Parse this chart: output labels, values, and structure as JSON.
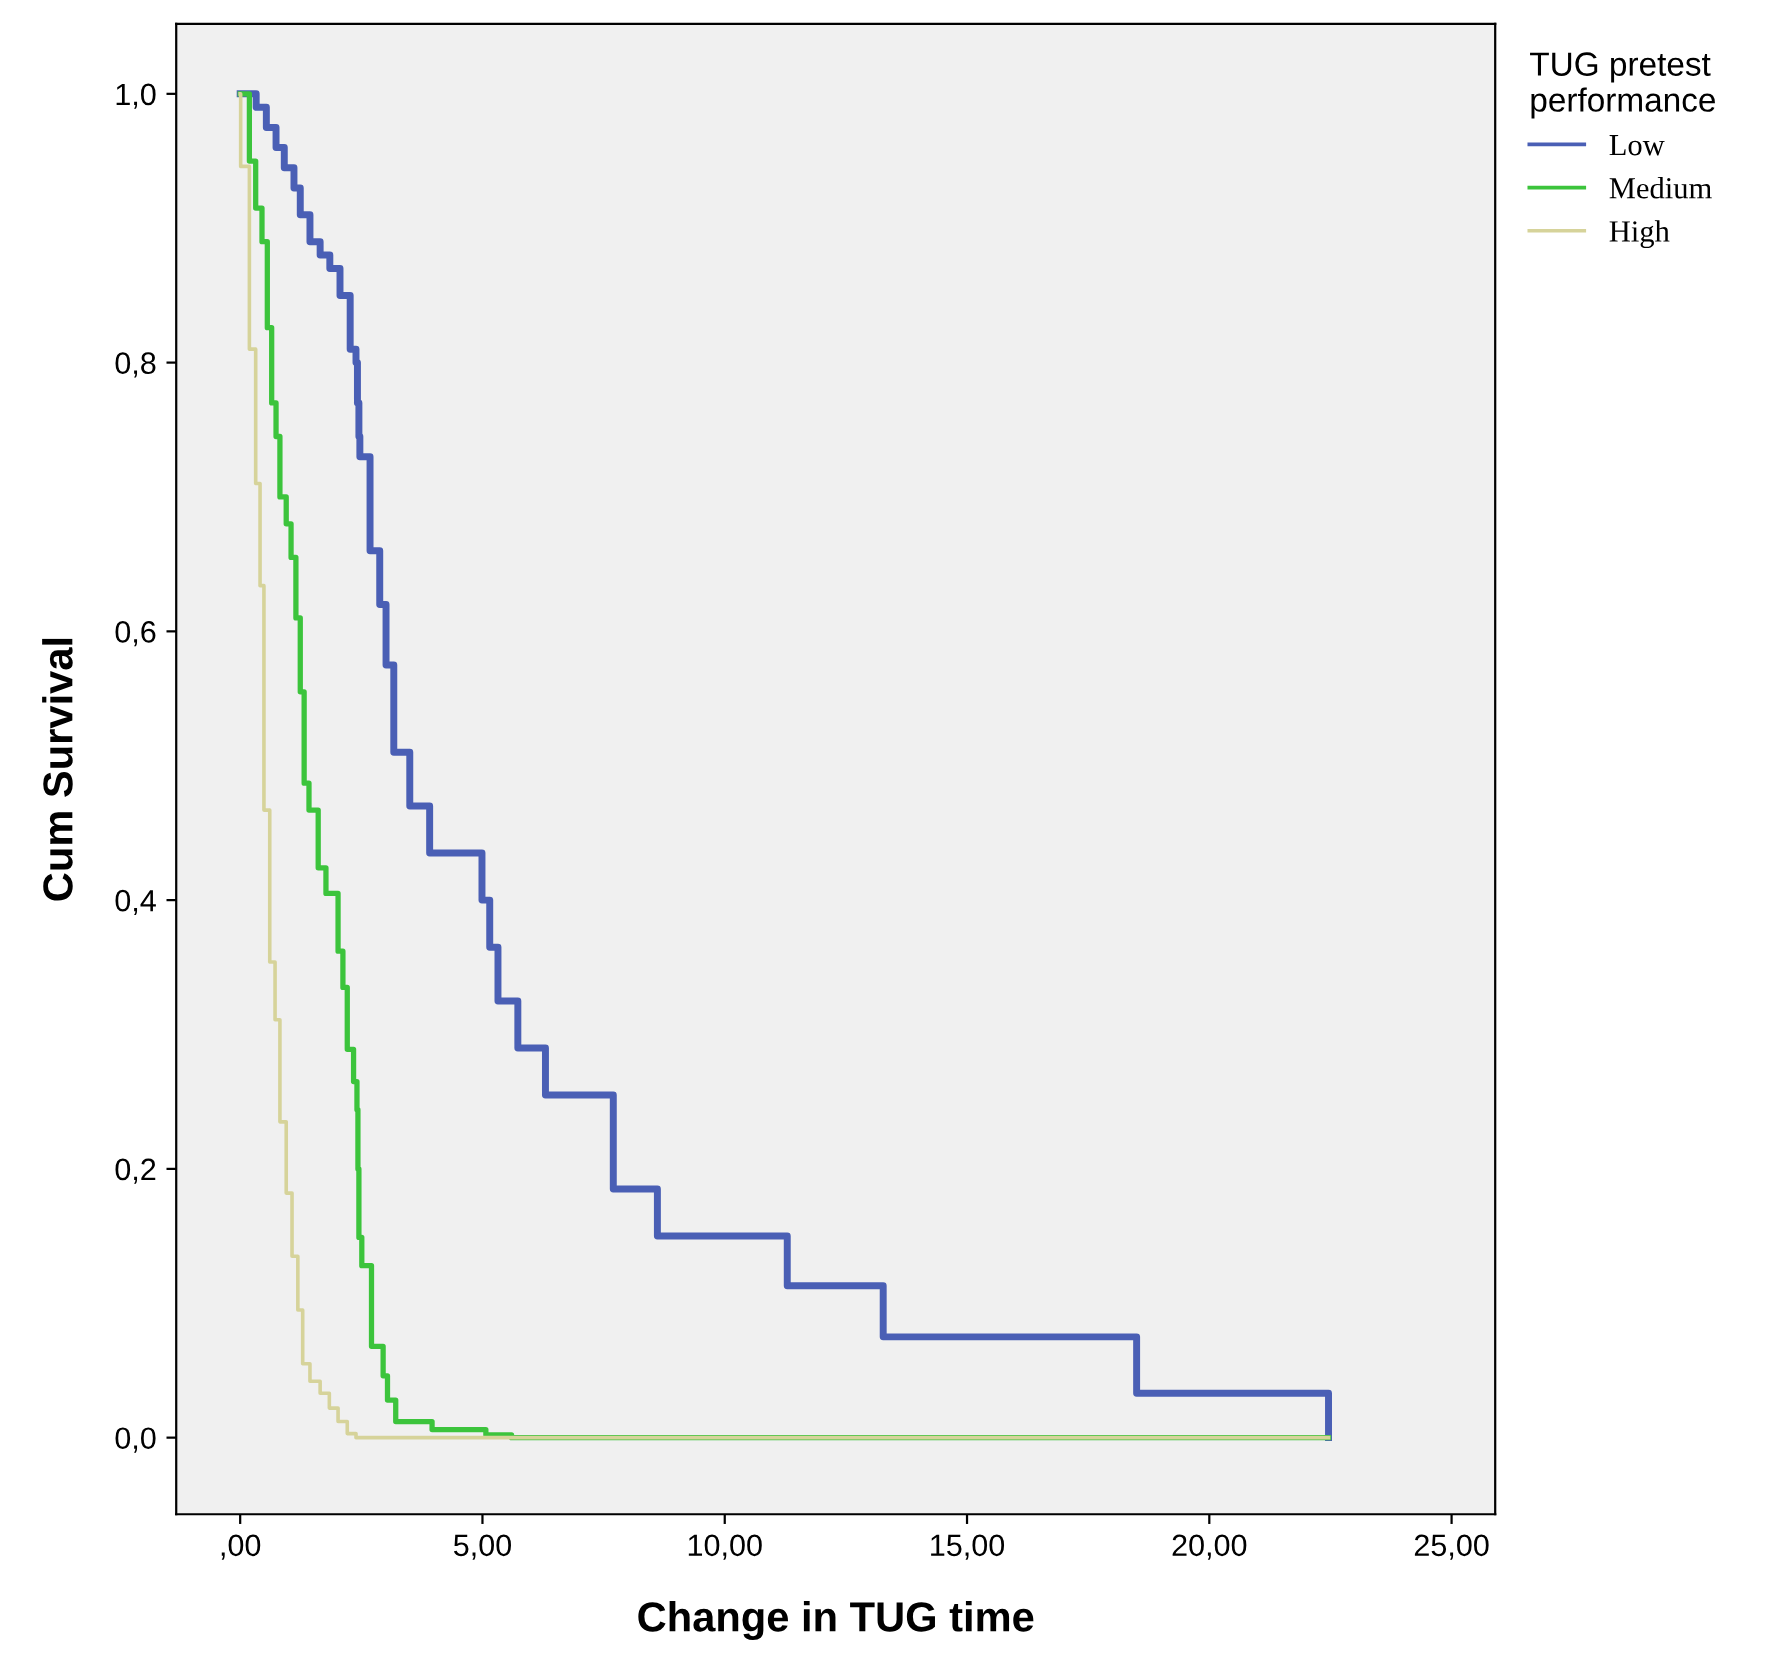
{
  "chart_data": {
    "type": "step",
    "xlabel": "Change in TUG time",
    "ylabel": "Cum Survival",
    "legend_title": "TUG pretest\nperformance",
    "legend": "right",
    "grid": false,
    "xlim": [
      -1.32,
      25.9
    ],
    "ylim": [
      -0.057,
      1.052
    ],
    "xticks": [
      {
        "value": 0,
        "label": ",00"
      },
      {
        "value": 5,
        "label": "5,00"
      },
      {
        "value": 10,
        "label": "10,00"
      },
      {
        "value": 15,
        "label": "15,00"
      },
      {
        "value": 20,
        "label": "20,00"
      },
      {
        "value": 25,
        "label": "25,00"
      }
    ],
    "yticks": [
      {
        "value": 0,
        "label": "0,0"
      },
      {
        "value": 0.2,
        "label": "0,2"
      },
      {
        "value": 0.4,
        "label": "0,4"
      },
      {
        "value": 0.6,
        "label": "0,6"
      },
      {
        "value": 0.8,
        "label": "0,8"
      },
      {
        "value": 1.0,
        "label": "1,0"
      }
    ],
    "series": [
      {
        "name": "Low",
        "color": "#4a5fb5",
        "x": [
          0,
          0.33,
          0.54,
          0.74,
          0.91,
          1.11,
          1.24,
          1.44,
          1.65,
          1.85,
          2.06,
          2.27,
          2.39,
          2.42,
          2.45,
          2.47,
          2.68,
          2.88,
          3.01,
          3.17,
          3.5,
          3.91,
          4.99,
          5.15,
          5.32,
          5.73,
          6.3,
          7.7,
          8.61,
          11.29,
          13.27,
          18.5,
          22.46
        ],
        "values": [
          1.0,
          0.99,
          0.975,
          0.96,
          0.945,
          0.93,
          0.91,
          0.89,
          0.88,
          0.87,
          0.85,
          0.81,
          0.8,
          0.77,
          0.745,
          0.73,
          0.66,
          0.62,
          0.575,
          0.51,
          0.47,
          0.435,
          0.4,
          0.365,
          0.325,
          0.29,
          0.255,
          0.185,
          0.15,
          0.113,
          0.075,
          0.033,
          0.0
        ]
      },
      {
        "name": "Medium",
        "color": "#3cc43c",
        "x": [
          0,
          0.19,
          0.32,
          0.45,
          0.56,
          0.65,
          0.74,
          0.82,
          0.95,
          1.05,
          1.15,
          1.24,
          1.32,
          1.42,
          1.61,
          1.77,
          2.02,
          2.12,
          2.21,
          2.34,
          2.41,
          2.43,
          2.45,
          2.51,
          2.71,
          2.95,
          3.04,
          3.21,
          3.96,
          5.07,
          5.6,
          22.46
        ],
        "values": [
          1.0,
          0.95,
          0.915,
          0.89,
          0.826,
          0.77,
          0.745,
          0.7,
          0.68,
          0.655,
          0.61,
          0.555,
          0.487,
          0.467,
          0.424,
          0.405,
          0.362,
          0.335,
          0.289,
          0.265,
          0.244,
          0.2,
          0.149,
          0.128,
          0.068,
          0.046,
          0.028,
          0.012,
          0.006,
          0.002,
          0.0,
          0.0
        ]
      },
      {
        "name": "High",
        "color": "#d6d39a",
        "x": [
          0,
          0.01,
          0.19,
          0.32,
          0.41,
          0.49,
          0.61,
          0.72,
          0.82,
          0.95,
          1.07,
          1.19,
          1.29,
          1.44,
          1.65,
          1.84,
          2.02,
          2.21,
          2.39,
          22.46
        ],
        "values": [
          1.0,
          0.946,
          0.81,
          0.71,
          0.634,
          0.467,
          0.354,
          0.311,
          0.235,
          0.182,
          0.135,
          0.095,
          0.055,
          0.042,
          0.033,
          0.022,
          0.012,
          0.003,
          0.0,
          0.0
        ]
      }
    ]
  }
}
